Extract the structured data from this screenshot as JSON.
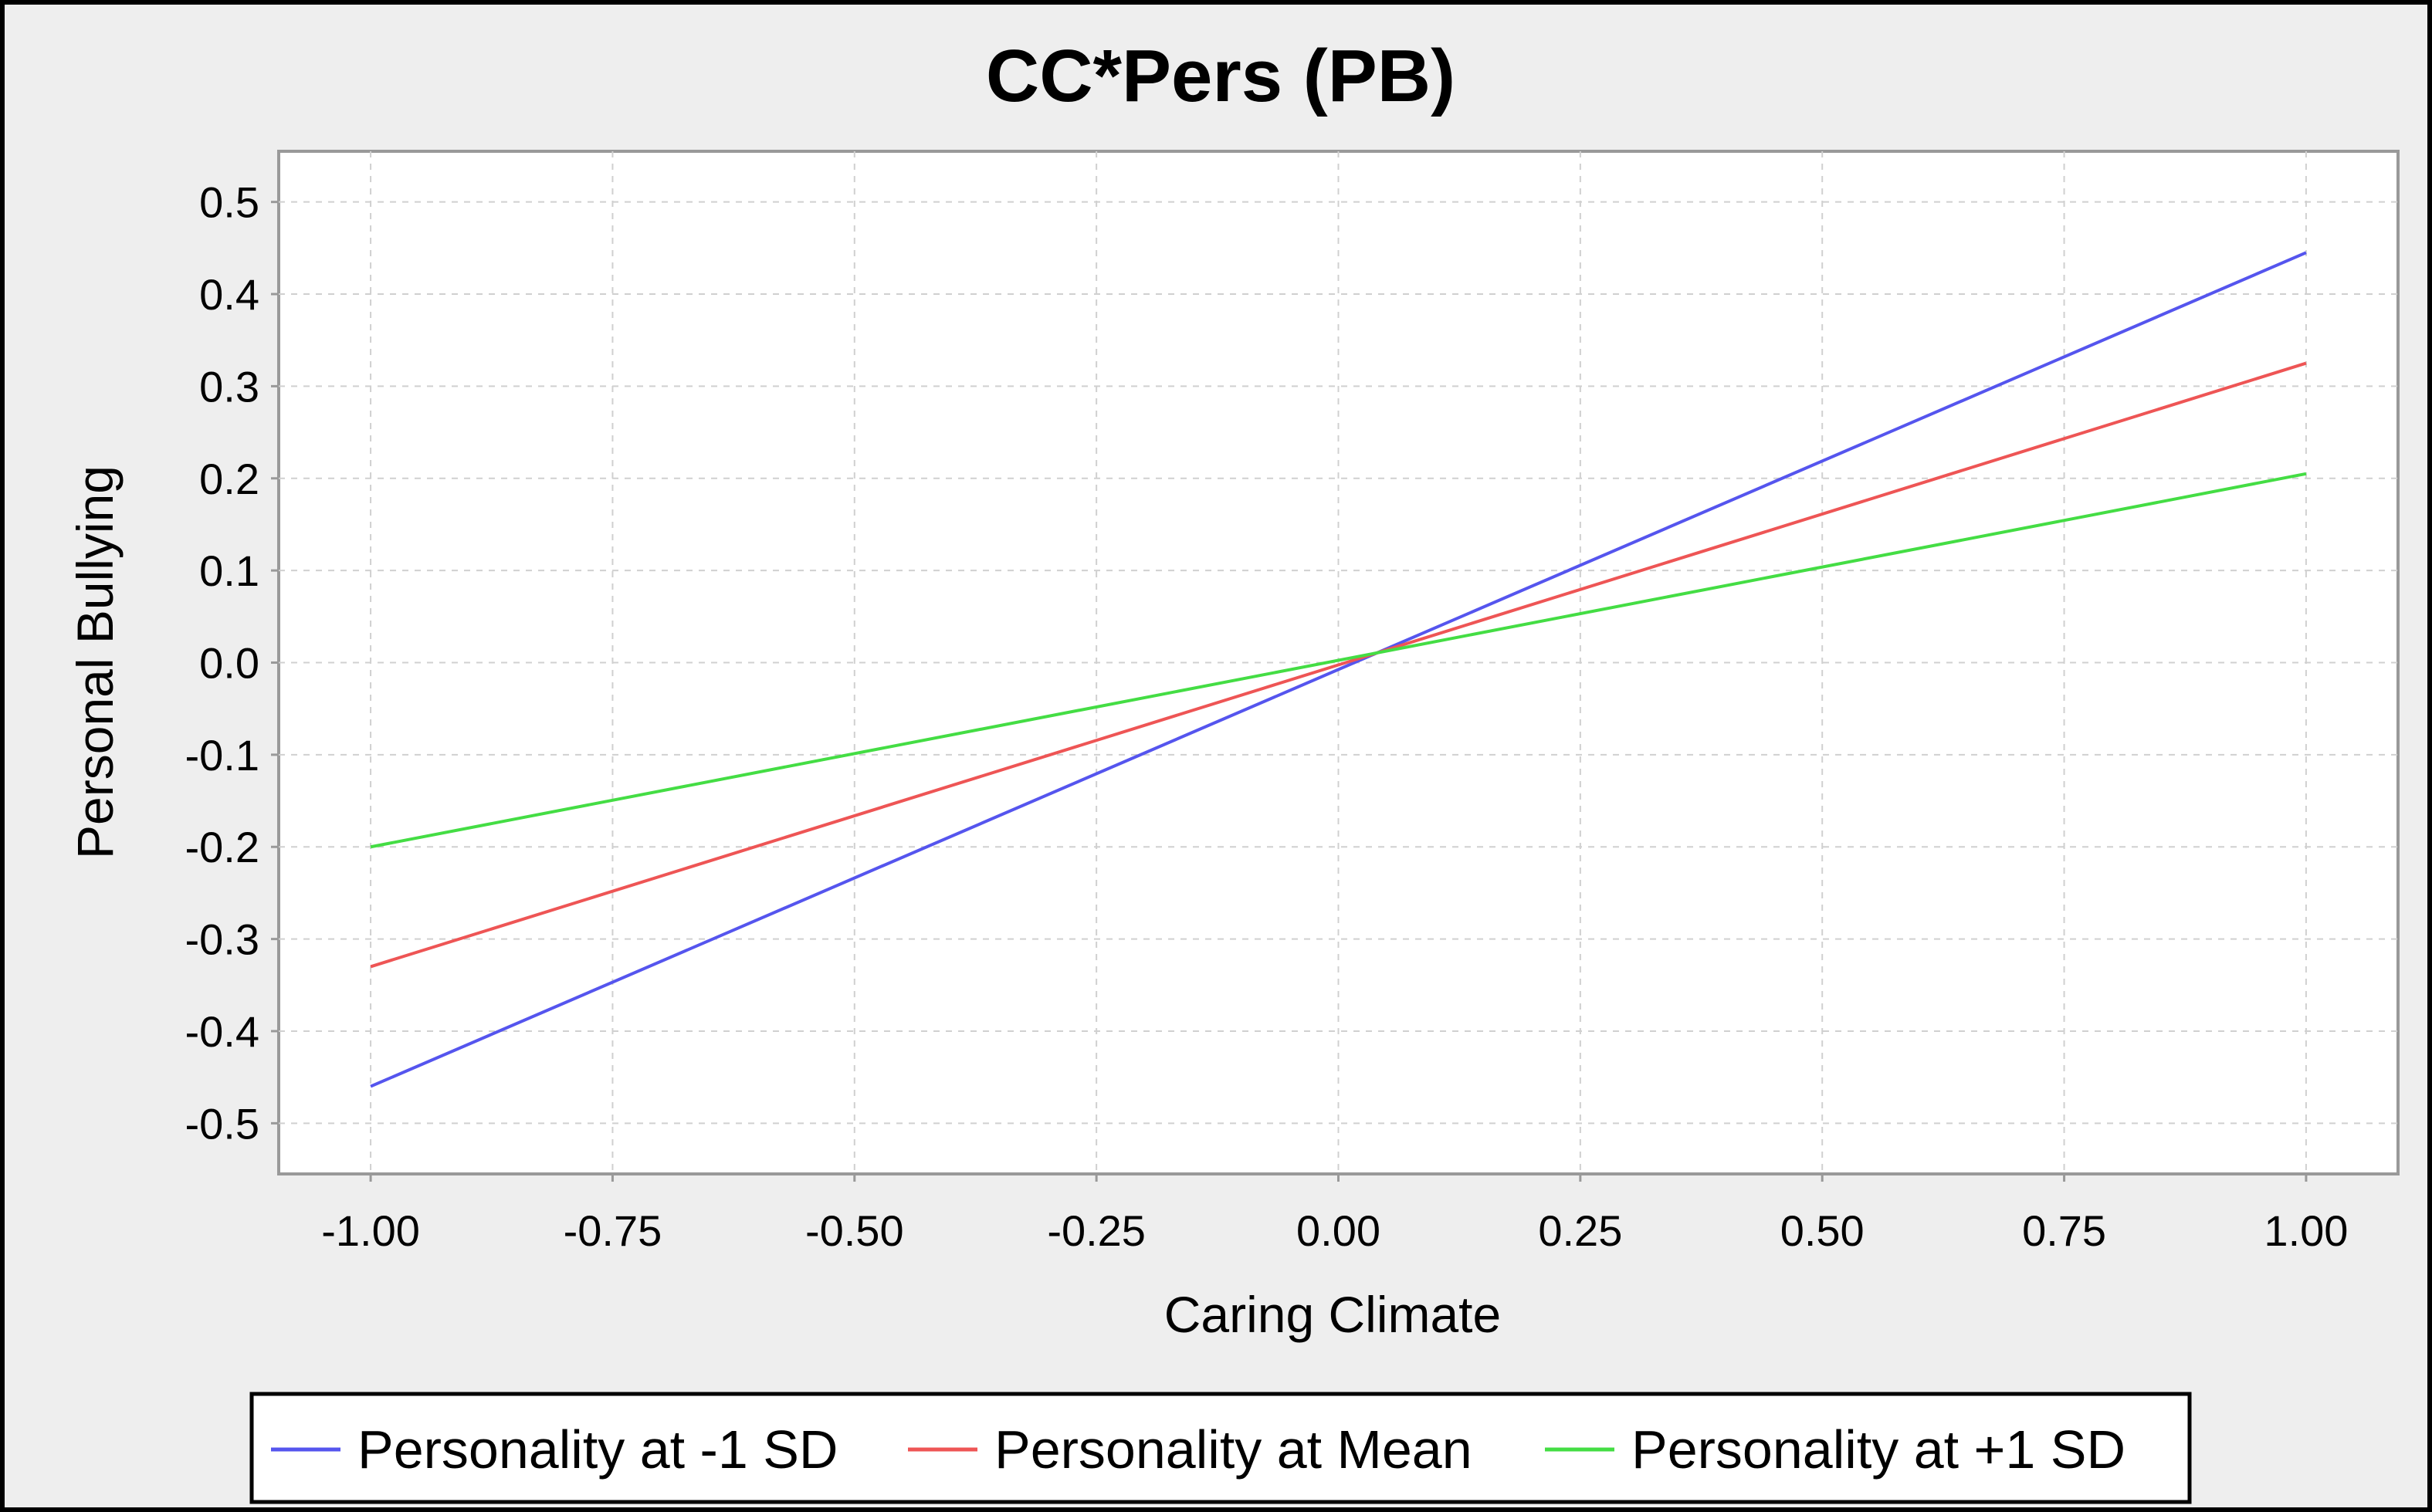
{
  "chart_data": {
    "type": "line",
    "title": "CC*Pers (PB)",
    "xlabel": "Caring Climate",
    "ylabel": "Personal Bullying",
    "x": [
      -1.0,
      1.0
    ],
    "x_ticks": [
      "-1.00",
      "-0.75",
      "-0.50",
      "-0.25",
      "0.00",
      "0.25",
      "0.50",
      "0.75",
      "1.00"
    ],
    "y_ticks": [
      "0.5",
      "0.4",
      "0.3",
      "0.2",
      "0.1",
      "0.0",
      "-0.1",
      "-0.2",
      "-0.3",
      "-0.4",
      "-0.5"
    ],
    "xlim": [
      -1.095,
      1.095
    ],
    "ylim": [
      -0.555,
      0.555
    ],
    "grid": true,
    "legend_position": "bottom",
    "series": [
      {
        "name": "Personality at -1 SD",
        "color": "#5555ee",
        "values": [
          -0.46,
          0.445
        ]
      },
      {
        "name": "Personality at Mean",
        "color": "#ee5555",
        "values": [
          -0.33,
          0.325
        ]
      },
      {
        "name": "Personality at +1 SD",
        "color": "#44dd44",
        "values": [
          -0.2,
          0.205
        ]
      }
    ]
  }
}
